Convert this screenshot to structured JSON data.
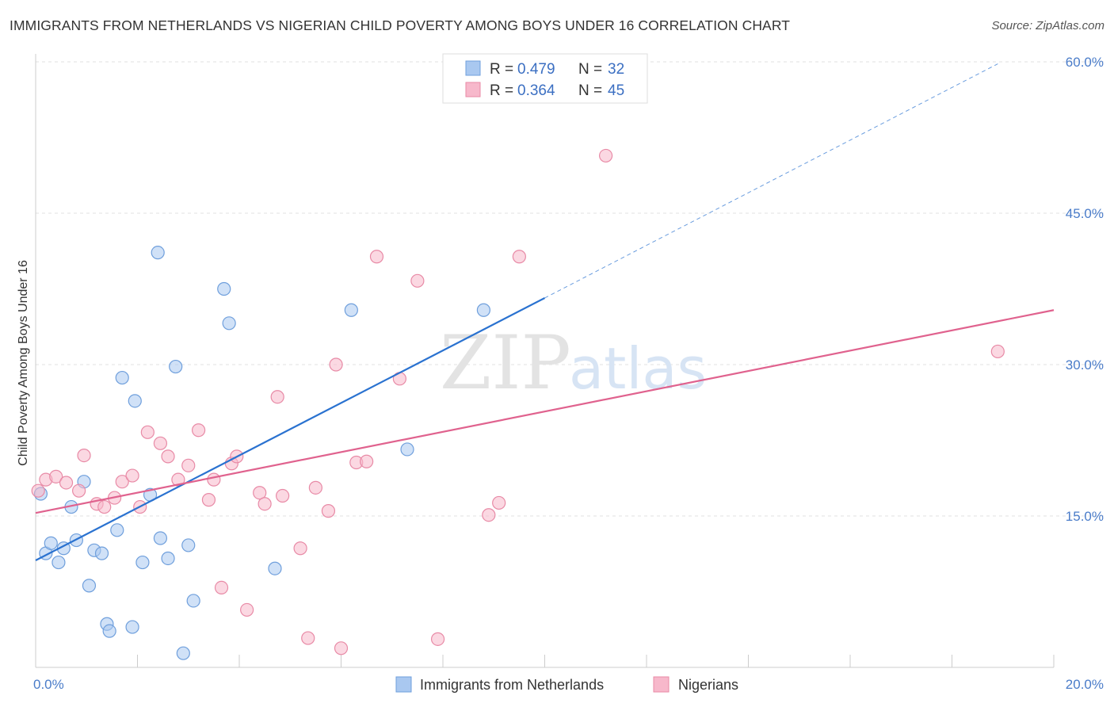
{
  "title": "IMMIGRANTS FROM NETHERLANDS VS NIGERIAN CHILD POVERTY AMONG BOYS UNDER 16 CORRELATION CHART",
  "source": "Source: ZipAtlas.com",
  "watermark": {
    "zip": "ZIP",
    "atlas": "atlas"
  },
  "legend": {
    "r_label": "R = ",
    "n_label": "N = ",
    "rows": [
      {
        "r": "0.479",
        "n": "32",
        "color": "#a9c8f0"
      },
      {
        "r": "0.364",
        "n": "45",
        "color": "#f7b8cb"
      }
    ]
  },
  "chart_data": {
    "type": "scatter",
    "ylabel": "Child Poverty Among Boys Under 16",
    "xlim": [
      0,
      20
    ],
    "ylim": [
      0,
      60
    ],
    "x_tick_labels": [
      "0.0%",
      "20.0%"
    ],
    "y_ticks": [
      15,
      30,
      45,
      60
    ],
    "y_tick_labels": [
      "15.0%",
      "30.0%",
      "45.0%",
      "60.0%"
    ],
    "grid": true,
    "legend_position": "top-center",
    "series": [
      {
        "name": "Immigrants from Netherlands",
        "color": "#a9c8f0",
        "stroke": "#6f9fdc",
        "line_color": "#2a72d0",
        "trend": {
          "x0": 0,
          "y0": 10.6,
          "x1": 10.0,
          "y1": 36.6,
          "x_end": 18.9,
          "y_end": 59.8
        },
        "points": [
          [
            0.2,
            11.3
          ],
          [
            0.3,
            12.3
          ],
          [
            0.45,
            10.4
          ],
          [
            0.55,
            11.8
          ],
          [
            0.7,
            15.9
          ],
          [
            0.8,
            12.6
          ],
          [
            0.95,
            18.4
          ],
          [
            1.05,
            8.1
          ],
          [
            1.15,
            11.6
          ],
          [
            1.3,
            11.3
          ],
          [
            1.4,
            4.3
          ],
          [
            1.45,
            3.6
          ],
          [
            1.6,
            13.6
          ],
          [
            1.7,
            28.7
          ],
          [
            1.9,
            4.0
          ],
          [
            1.95,
            26.4
          ],
          [
            2.1,
            10.4
          ],
          [
            2.25,
            17.1
          ],
          [
            2.4,
            41.1
          ],
          [
            2.45,
            12.8
          ],
          [
            2.6,
            10.8
          ],
          [
            2.75,
            29.8
          ],
          [
            2.9,
            1.4
          ],
          [
            3.0,
            12.1
          ],
          [
            3.1,
            6.6
          ],
          [
            3.7,
            37.5
          ],
          [
            3.8,
            34.1
          ],
          [
            4.7,
            9.8
          ],
          [
            6.2,
            35.4
          ],
          [
            7.3,
            21.6
          ],
          [
            8.8,
            35.4
          ],
          [
            0.1,
            17.2
          ]
        ]
      },
      {
        "name": "Nigerians",
        "color": "#f7b8cb",
        "stroke": "#e88aa6",
        "line_color": "#e0628e",
        "trend": {
          "x0": 0,
          "y0": 15.3,
          "x1": 20.0,
          "y1": 35.4
        },
        "points": [
          [
            0.05,
            17.5
          ],
          [
            0.2,
            18.6
          ],
          [
            0.4,
            18.9
          ],
          [
            0.6,
            18.3
          ],
          [
            0.85,
            17.5
          ],
          [
            0.95,
            21.0
          ],
          [
            1.2,
            16.2
          ],
          [
            1.35,
            15.9
          ],
          [
            1.55,
            16.8
          ],
          [
            1.7,
            18.4
          ],
          [
            1.9,
            19.0
          ],
          [
            2.05,
            15.9
          ],
          [
            2.2,
            23.3
          ],
          [
            2.45,
            22.2
          ],
          [
            2.6,
            20.9
          ],
          [
            2.8,
            18.6
          ],
          [
            3.0,
            20.0
          ],
          [
            3.2,
            23.5
          ],
          [
            3.4,
            16.6
          ],
          [
            3.5,
            18.6
          ],
          [
            3.65,
            7.9
          ],
          [
            3.85,
            20.2
          ],
          [
            3.95,
            20.9
          ],
          [
            4.15,
            5.7
          ],
          [
            4.4,
            17.3
          ],
          [
            4.5,
            16.2
          ],
          [
            4.75,
            26.8
          ],
          [
            4.85,
            17.0
          ],
          [
            5.2,
            11.8
          ],
          [
            5.35,
            2.9
          ],
          [
            5.5,
            17.8
          ],
          [
            5.75,
            15.5
          ],
          [
            5.9,
            30.0
          ],
          [
            6.0,
            1.9
          ],
          [
            6.3,
            20.3
          ],
          [
            6.5,
            20.4
          ],
          [
            6.7,
            40.7
          ],
          [
            7.15,
            28.6
          ],
          [
            7.5,
            38.3
          ],
          [
            7.9,
            2.8
          ],
          [
            8.9,
            15.1
          ],
          [
            9.1,
            16.3
          ],
          [
            9.5,
            40.7
          ],
          [
            11.2,
            50.7
          ],
          [
            18.9,
            31.3
          ]
        ]
      }
    ]
  }
}
